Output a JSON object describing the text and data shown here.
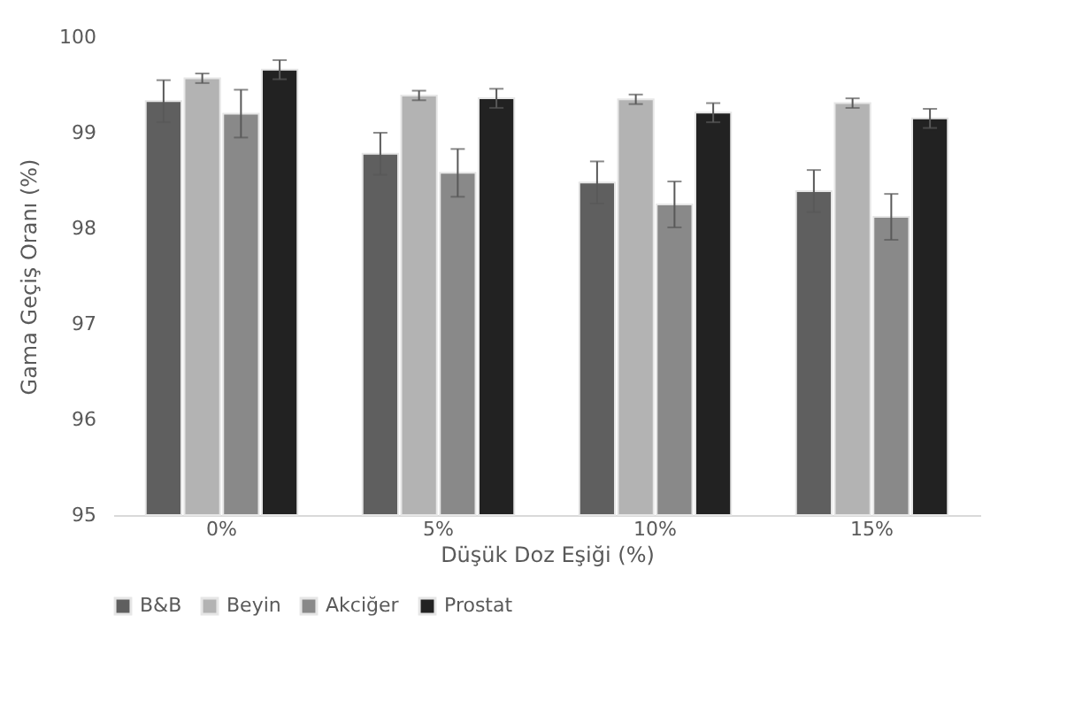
{
  "chart_data": {
    "type": "bar",
    "xlabel": "Düşük Doz Eşiği (%)",
    "ylabel": "Gama Geçiş Oranı (%)",
    "categories": [
      "0%",
      "5%",
      "10%",
      "15%"
    ],
    "series": [
      {
        "name": "B&B",
        "color": "#5f5f5f",
        "values": [
          99.33,
          98.78,
          98.48,
          98.39
        ],
        "errors": [
          0.22,
          0.22,
          0.22,
          0.22
        ]
      },
      {
        "name": "Beyin",
        "color": "#b3b3b3",
        "values": [
          99.57,
          99.39,
          99.35,
          99.31
        ],
        "errors": [
          0.05,
          0.05,
          0.05,
          0.05
        ]
      },
      {
        "name": "Akciğer",
        "color": "#898989",
        "values": [
          99.2,
          98.58,
          98.25,
          98.12
        ],
        "errors": [
          0.25,
          0.25,
          0.24,
          0.24
        ]
      },
      {
        "name": "Prostat",
        "color": "#222222",
        "values": [
          99.66,
          99.36,
          99.21,
          99.15
        ],
        "errors": [
          0.1,
          0.1,
          0.1,
          0.1
        ]
      }
    ],
    "ylim": [
      95,
      100
    ],
    "yticks": [
      95,
      96,
      97,
      98,
      99,
      100
    ],
    "grid": false,
    "legend": "bottom"
  }
}
